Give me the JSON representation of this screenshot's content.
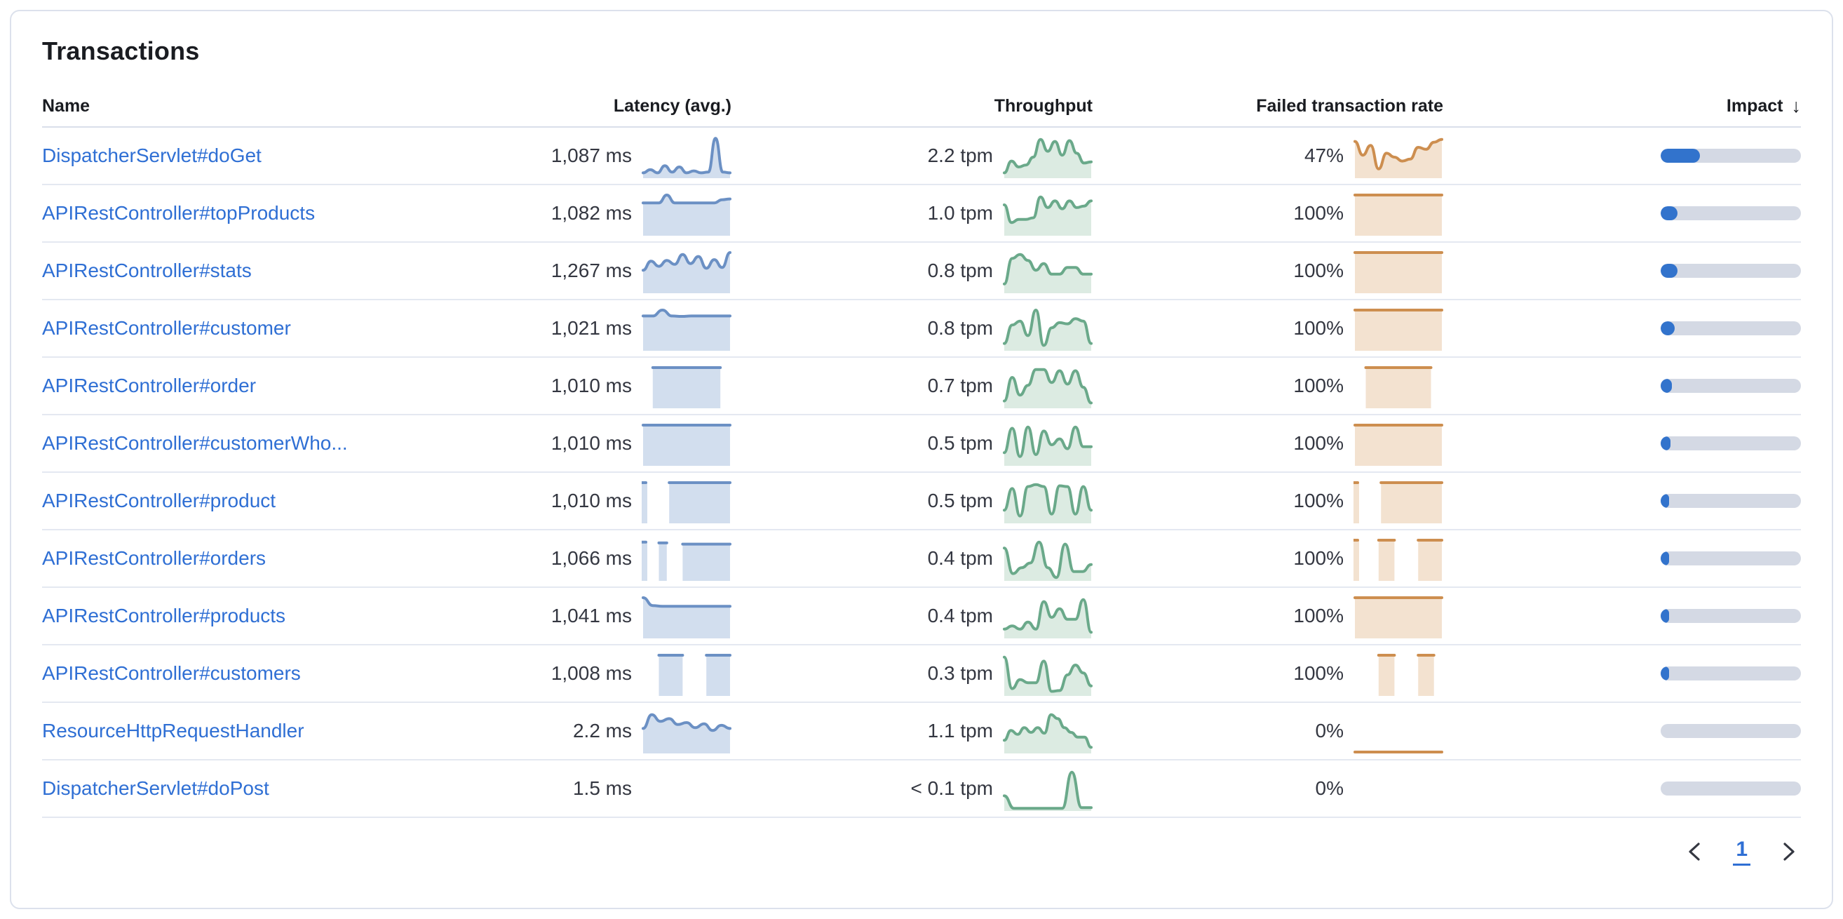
{
  "card": {
    "title": "Transactions"
  },
  "table": {
    "columns": [
      {
        "label": "Name"
      },
      {
        "label": "Latency (avg.)"
      },
      {
        "label": "Throughput"
      },
      {
        "label": "Failed transaction rate"
      },
      {
        "label": "Impact",
        "sort_icon": "↓",
        "sort": "desc"
      }
    ],
    "rows": [
      {
        "name": "DispatcherServlet#doGet",
        "latency": "1,087 ms",
        "latency_spark": [
          0.1,
          0.18,
          0.1,
          0.28,
          0.12,
          0.25,
          0.1,
          0.15,
          0.1,
          0.12,
          0.98,
          0.12,
          0.1
        ],
        "throughput": "2.2 tpm",
        "throughput_spark": [
          0.1,
          0.4,
          0.25,
          0.3,
          0.5,
          0.95,
          0.65,
          0.9,
          0.55,
          0.92,
          0.6,
          0.35,
          0.38
        ],
        "failed_rate": "47%",
        "failed_spark": [
          0.9,
          0.55,
          0.8,
          0.2,
          0.6,
          0.5,
          0.4,
          0.45,
          0.75,
          0.7,
          0.88,
          0.95
        ],
        "impact_pct": 28
      },
      {
        "name": "APIRestController#topProducts",
        "latency": "1,082 ms",
        "latency_spark": [
          0.8,
          0.8,
          0.8,
          1.0,
          0.8,
          0.8,
          0.8,
          0.8,
          0.8,
          0.8,
          0.88,
          0.9
        ],
        "throughput": "1.0 tpm",
        "throughput_spark": [
          0.75,
          0.3,
          0.38,
          0.38,
          0.42,
          0.95,
          0.68,
          0.85,
          0.65,
          0.85,
          0.68,
          0.72,
          0.85
        ],
        "failed_rate": "100%",
        "failed_spark": [
          1,
          1,
          1,
          1,
          1,
          1,
          1,
          1,
          1,
          1,
          1,
          1
        ],
        "impact_pct": 12
      },
      {
        "name": "APIRestController#stats",
        "latency": "1,267 ms",
        "latency_spark": [
          0.55,
          0.78,
          0.65,
          0.8,
          0.7,
          0.95,
          0.72,
          0.9,
          0.6,
          0.82,
          0.62,
          1.0
        ],
        "throughput": "0.8 tpm",
        "throughput_spark": [
          0.2,
          0.85,
          0.95,
          0.8,
          0.55,
          0.72,
          0.45,
          0.45,
          0.62,
          0.62,
          0.45,
          0.45
        ],
        "failed_rate": "100%",
        "failed_spark": [
          1,
          1,
          1,
          1,
          1,
          1,
          1,
          1,
          1,
          1,
          1,
          1
        ],
        "impact_pct": 12
      },
      {
        "name": "APIRestController#customer",
        "latency": "1,021 ms",
        "latency_spark": [
          0.85,
          0.85,
          1.0,
          0.85,
          0.84,
          0.85,
          0.85,
          0.85,
          0.85,
          0.85
        ],
        "throughput": "0.8 tpm",
        "throughput_spark": [
          0.15,
          0.62,
          0.72,
          0.35,
          1.0,
          0.1,
          0.55,
          0.68,
          0.65,
          0.78,
          0.72,
          0.15
        ],
        "failed_rate": "100%",
        "failed_spark": [
          1,
          1,
          1,
          1,
          1,
          1,
          1,
          1,
          1,
          1,
          1,
          1
        ],
        "impact_pct": 10
      },
      {
        "name": "APIRestController#order",
        "latency": "1,010 ms",
        "latency_spark": [
          null,
          1,
          1,
          1,
          1,
          1,
          1,
          1,
          1,
          null
        ],
        "throughput": "0.7 tpm",
        "throughput_spark": [
          0.15,
          0.75,
          0.3,
          0.55,
          0.95,
          0.95,
          0.62,
          0.92,
          0.58,
          0.92,
          0.5,
          0.1
        ],
        "failed_rate": "100%",
        "failed_spark": [
          null,
          1,
          1,
          1,
          1,
          1,
          1,
          1,
          null
        ],
        "impact_pct": 8
      },
      {
        "name": "APIRestController#customerWho...",
        "latency": "1,010 ms",
        "latency_spark": [
          1,
          1,
          1,
          1,
          1,
          1,
          1,
          1,
          1,
          1
        ],
        "throughput": "0.5 tpm",
        "throughput_spark": [
          0.3,
          0.92,
          0.2,
          0.95,
          0.25,
          0.85,
          0.5,
          0.65,
          0.4,
          0.95,
          0.45,
          0.45
        ],
        "failed_rate": "100%",
        "failed_spark": [
          1,
          1,
          1,
          1,
          1,
          1,
          1,
          1,
          1,
          1,
          1,
          1
        ],
        "impact_pct": 7
      },
      {
        "name": "APIRestController#product",
        "latency": "1,010 ms",
        "latency_spark": [
          1,
          null,
          null,
          1,
          1,
          1,
          1,
          1,
          1,
          1,
          1
        ],
        "throughput": "0.5 tpm",
        "throughput_spark": [
          0.3,
          0.85,
          0.15,
          0.9,
          0.95,
          0.9,
          0.2,
          0.92,
          0.9,
          0.2,
          0.9,
          0.3
        ],
        "failed_rate": "100%",
        "failed_spark": [
          1,
          null,
          null,
          1,
          1,
          1,
          1,
          1,
          1,
          1,
          1
        ],
        "impact_pct": 6
      },
      {
        "name": "APIRestController#orders",
        "latency": "1,066 ms",
        "latency_spark": [
          0.95,
          null,
          0.93,
          0.93,
          null,
          0.9,
          0.9,
          0.9,
          0.9,
          0.9,
          0.9,
          0.9
        ],
        "throughput": "0.4 tpm",
        "throughput_spark": [
          0.8,
          0.15,
          0.3,
          0.42,
          0.95,
          0.3,
          0.05,
          0.9,
          0.2,
          0.2,
          0.38
        ],
        "failed_rate": "100%",
        "failed_spark": [
          1,
          null,
          null,
          1,
          1,
          1,
          null,
          null,
          1,
          1,
          1,
          1
        ],
        "impact_pct": 5
      },
      {
        "name": "APIRestController#products",
        "latency": "1,041 ms",
        "latency_spark": [
          1.0,
          0.8,
          0.78,
          0.78,
          0.78,
          0.78,
          0.78,
          0.78,
          0.78,
          0.78
        ],
        "throughput": "0.4 tpm",
        "throughput_spark": [
          0.2,
          0.28,
          0.2,
          0.38,
          0.2,
          0.9,
          0.5,
          0.72,
          0.45,
          0.45,
          0.95,
          0.12
        ],
        "failed_rate": "100%",
        "failed_spark": [
          1,
          1,
          1,
          1,
          1,
          1,
          1,
          1,
          1,
          1,
          1,
          1
        ],
        "impact_pct": 5
      },
      {
        "name": "APIRestController#customers",
        "latency": "1,008 ms",
        "latency_spark": [
          null,
          null,
          1,
          1,
          1,
          1,
          null,
          null,
          1,
          1,
          1,
          1
        ],
        "throughput": "0.3 tpm",
        "throughput_spark": [
          0.95,
          0.15,
          0.38,
          0.3,
          0.3,
          0.85,
          0.08,
          0.1,
          0.5,
          0.75,
          0.55,
          0.22
        ],
        "failed_rate": "100%",
        "failed_spark": [
          null,
          null,
          null,
          1,
          1,
          1,
          null,
          null,
          1,
          1,
          1,
          null
        ],
        "impact_pct": 4
      },
      {
        "name": "ResourceHttpRequestHandler",
        "latency": "2.2 ms",
        "latency_spark": [
          0.6,
          0.95,
          0.78,
          0.85,
          0.7,
          0.75,
          0.62,
          0.72,
          0.55,
          0.68,
          0.6
        ],
        "throughput": "1.1 tpm",
        "throughput_spark": [
          0.3,
          0.55,
          0.45,
          0.62,
          0.5,
          0.62,
          0.48,
          0.95,
          0.85,
          0.62,
          0.5,
          0.38,
          0.38,
          0.12
        ],
        "failed_rate": "0%",
        "failed_spark": [
          0,
          0,
          0,
          0,
          0,
          0,
          0,
          0
        ],
        "impact_pct": 0
      },
      {
        "name": "DispatcherServlet#doPost",
        "latency": "1.5 ms",
        "latency_spark": null,
        "throughput": "< 0.1 tpm",
        "throughput_spark": [
          0.35,
          0.03,
          0.03,
          0.03,
          0.03,
          0.03,
          0.03,
          0.95,
          0.05,
          0.05
        ],
        "failed_rate": "0%",
        "failed_spark": null,
        "impact_pct": 0
      }
    ]
  },
  "pagination": {
    "page": "1",
    "prev_icon": "chevron-left",
    "next_icon": "chevron-right"
  },
  "colors": {
    "link": "#2f6fd4",
    "impact_fill": "#3273cc",
    "impact_track": "#d4d9e4",
    "sparks": {
      "blue": {
        "stroke": "#6b90c4",
        "fill": "#d2deee"
      },
      "green": {
        "stroke": "#6aa98a",
        "fill": "#dcebe2"
      },
      "orange": {
        "stroke": "#cd8e4f",
        "fill": "#f3e2d0"
      }
    }
  }
}
